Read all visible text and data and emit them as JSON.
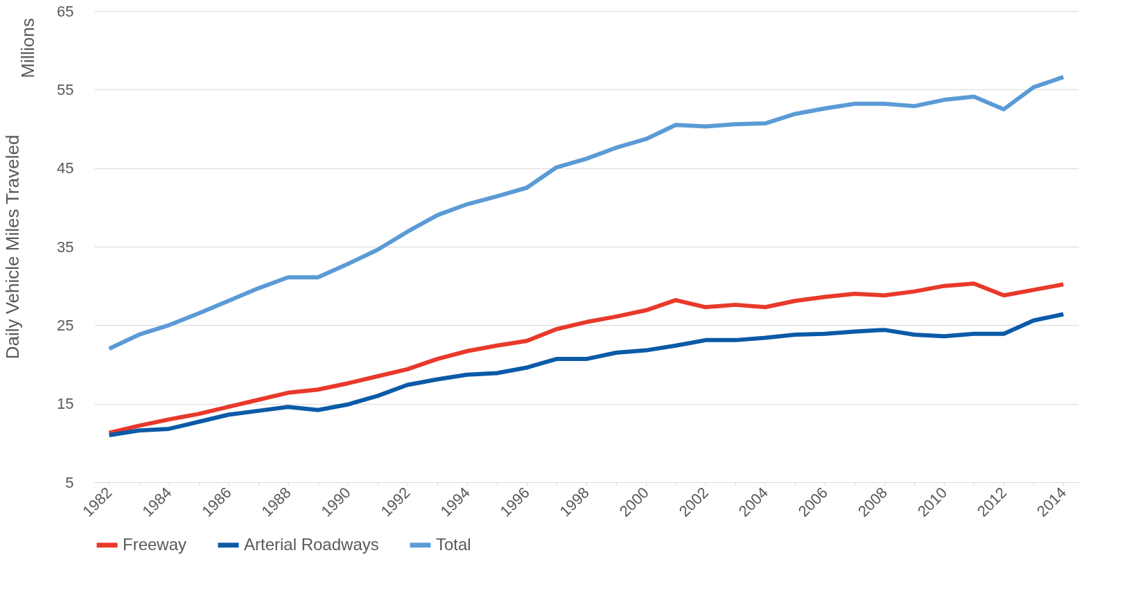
{
  "chart_data": {
    "type": "line",
    "ylabel": "Daily Vehicle Miles Traveled",
    "annotations": [
      "Millions"
    ],
    "categories": [
      "1982",
      null,
      "1984",
      null,
      "1986",
      null,
      "1988",
      null,
      "1990",
      null,
      "1992",
      null,
      "1994",
      null,
      "1996",
      null,
      "1998",
      null,
      "2000",
      null,
      "2002",
      null,
      "2004",
      null,
      "2006",
      null,
      "2008",
      null,
      "2010",
      null,
      "2012",
      null,
      "2014"
    ],
    "ylim": [
      5,
      65
    ],
    "yticks": [
      5,
      15,
      25,
      35,
      45,
      55,
      65
    ],
    "grid": "y",
    "legend": "bottom",
    "line_style": "solid",
    "marker": "none",
    "series": [
      {
        "name": "Freeway",
        "color": "#e8392b",
        "values": [
          11.3,
          12.2,
          13.0,
          13.7,
          14.6,
          15.5,
          16.4,
          16.8,
          17.6,
          18.5,
          19.4,
          20.7,
          21.7,
          22.4,
          23.0,
          24.5,
          25.4,
          26.1,
          26.9,
          28.2,
          27.3,
          27.6,
          27.3,
          28.1,
          28.6,
          29.0,
          28.8,
          29.3,
          30.0,
          30.3,
          28.8,
          29.5,
          30.2
        ]
      },
      {
        "name": "Arterial Roadways",
        "color": "#0b5aa8",
        "values": [
          11.0,
          11.6,
          11.8,
          12.7,
          13.6,
          14.1,
          14.6,
          14.2,
          14.9,
          16.0,
          17.4,
          18.1,
          18.7,
          18.9,
          19.6,
          20.7,
          20.7,
          21.5,
          21.8,
          22.4,
          23.1,
          23.1,
          23.4,
          23.8,
          23.9,
          24.2,
          24.4,
          23.8,
          23.6,
          23.9,
          23.9,
          25.6,
          26.4
        ]
      },
      {
        "name": "Total",
        "color": "#5b9bd5",
        "values": [
          22.0,
          23.8,
          25.0,
          26.5,
          28.1,
          29.7,
          31.1,
          31.1,
          32.8,
          34.6,
          36.9,
          39.0,
          40.4,
          41.4,
          42.5,
          45.1,
          46.2,
          47.6,
          48.7,
          50.5,
          50.3,
          50.6,
          50.7,
          51.9,
          52.6,
          53.2,
          53.2,
          52.9,
          53.7,
          54.1,
          52.5,
          55.3,
          56.6
        ]
      }
    ]
  }
}
